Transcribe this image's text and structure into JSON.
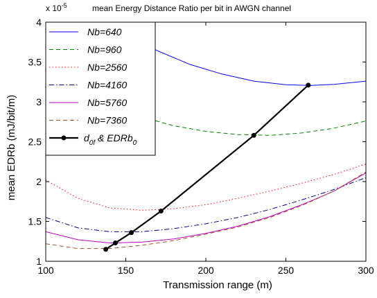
{
  "chart_data": {
    "type": "line",
    "title": "mean Energy Distance Ratio per bit in AWGN channel",
    "scale_label": "x 10",
    "scale_exponent": "-5",
    "xlabel": "Transmission range (m)",
    "ylabel": "mean EDRb (mJ/bit/m)",
    "xlim": [
      100,
      300
    ],
    "ylim": [
      1,
      4
    ],
    "xticks": [
      100,
      150,
      200,
      250,
      300
    ],
    "yticks": [
      1,
      1.5,
      2,
      2.5,
      3,
      3.5,
      4
    ],
    "grid": false,
    "legend_position": "top-left",
    "series": [
      {
        "name": "Nb=640",
        "color": "#0000ff",
        "dash": "solid",
        "points": [
          [
            137,
            4.0
          ],
          [
            150,
            3.84
          ],
          [
            170,
            3.64
          ],
          [
            190,
            3.47
          ],
          [
            210,
            3.35
          ],
          [
            230,
            3.26
          ],
          [
            250,
            3.215
          ],
          [
            265,
            3.205
          ],
          [
            280,
            3.22
          ],
          [
            300,
            3.26
          ]
        ]
      },
      {
        "name": "Nb=960",
        "color": "#008000",
        "dash": "dashed",
        "points": [
          [
            100,
            3.63
          ],
          [
            120,
            3.24
          ],
          [
            140,
            2.98
          ],
          [
            160,
            2.81
          ],
          [
            180,
            2.7
          ],
          [
            200,
            2.63
          ],
          [
            220,
            2.59
          ],
          [
            240,
            2.58
          ],
          [
            260,
            2.61
          ],
          [
            280,
            2.67
          ],
          [
            300,
            2.76
          ]
        ]
      },
      {
        "name": "Nb=2560",
        "color": "#ff0000",
        "dash": "dotted",
        "points": [
          [
            100,
            2.02
          ],
          [
            120,
            1.79
          ],
          [
            140,
            1.67
          ],
          [
            160,
            1.64
          ],
          [
            180,
            1.66
          ],
          [
            200,
            1.71
          ],
          [
            220,
            1.79
          ],
          [
            240,
            1.88
          ],
          [
            260,
            1.98
          ],
          [
            280,
            2.09
          ],
          [
            300,
            2.22
          ]
        ]
      },
      {
        "name": "Nb=4160",
        "color": "#00008b",
        "dash": "dashdot",
        "points": [
          [
            100,
            1.55
          ],
          [
            120,
            1.42
          ],
          [
            140,
            1.37
          ],
          [
            160,
            1.37
          ],
          [
            180,
            1.41
          ],
          [
            200,
            1.47
          ],
          [
            220,
            1.55
          ],
          [
            240,
            1.65
          ],
          [
            260,
            1.77
          ],
          [
            280,
            1.9
          ],
          [
            300,
            2.05
          ]
        ]
      },
      {
        "name": "Nb=5760",
        "color": "#bf00bf",
        "dash": "solid",
        "points": [
          [
            100,
            1.37
          ],
          [
            120,
            1.27
          ],
          [
            140,
            1.23
          ],
          [
            160,
            1.24
          ],
          [
            180,
            1.28
          ],
          [
            200,
            1.35
          ],
          [
            220,
            1.44
          ],
          [
            240,
            1.56
          ],
          [
            260,
            1.71
          ],
          [
            280,
            1.88
          ],
          [
            300,
            2.11
          ]
        ]
      },
      {
        "name": "Nb=7360",
        "color": "#a0522d",
        "dash": "dashed",
        "points": [
          [
            100,
            1.22
          ],
          [
            120,
            1.16
          ],
          [
            140,
            1.16
          ],
          [
            160,
            1.2
          ],
          [
            180,
            1.26
          ],
          [
            200,
            1.34
          ],
          [
            220,
            1.43
          ],
          [
            240,
            1.55
          ],
          [
            260,
            1.7
          ],
          [
            280,
            1.88
          ],
          [
            300,
            2.12
          ]
        ]
      }
    ],
    "optimum_series": {
      "name_parts": [
        "d",
        "0f",
        " & EDRb",
        "0"
      ],
      "color": "#000000",
      "points": [
        [
          137.5,
          1.15
        ],
        [
          143.5,
          1.23
        ],
        [
          153.5,
          1.36
        ],
        [
          172,
          1.63
        ],
        [
          230,
          2.58
        ],
        [
          264,
          3.21
        ]
      ]
    }
  }
}
